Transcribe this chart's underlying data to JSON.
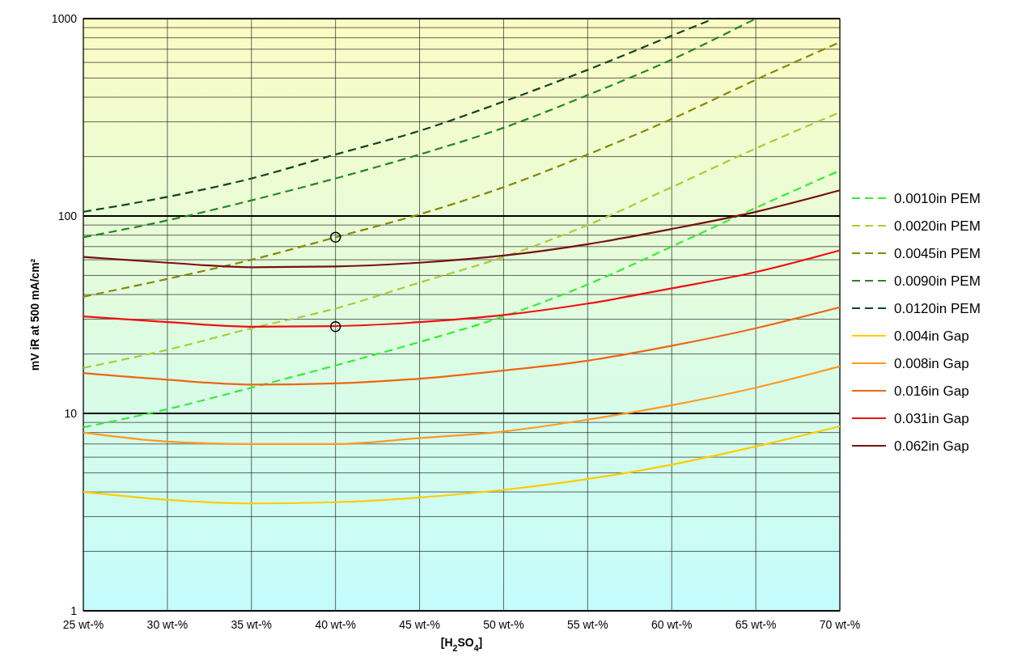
{
  "chart_data": {
    "type": "line",
    "xlabel": "[H$_{2}$SO$_{4}$]",
    "ylabel": "mV iR at 500 mA/cm²",
    "log": "y",
    "grid": true,
    "legend": "right",
    "xlim": [
      25,
      70
    ],
    "ylim": [
      1,
      1000
    ],
    "xticks": [
      {
        "value": 25,
        "label": "25 wt-%"
      },
      {
        "value": 30,
        "label": "30 wt-%"
      },
      {
        "value": 35,
        "label": "35 wt-%"
      },
      {
        "value": 40,
        "label": "40 wt-%"
      },
      {
        "value": 45,
        "label": "45 wt-%"
      },
      {
        "value": 50,
        "label": "50 wt-%"
      },
      {
        "value": 55,
        "label": "55 wt-%"
      },
      {
        "value": 60,
        "label": "60 wt-%"
      },
      {
        "value": 65,
        "label": "65 wt-%"
      },
      {
        "value": 70,
        "label": "70 wt-%"
      }
    ],
    "yticks": [
      1,
      {
        "value": 2,
        "label": null
      },
      {
        "value": 3,
        "label": null
      },
      {
        "value": 4,
        "label": null
      },
      {
        "value": 5,
        "label": null
      },
      {
        "value": 6,
        "label": null
      },
      {
        "value": 7,
        "label": null
      },
      {
        "value": 8,
        "label": null
      },
      {
        "value": 9,
        "label": null
      },
      10,
      {
        "value": 20,
        "label": null
      },
      {
        "value": 30,
        "label": null
      },
      {
        "value": 40,
        "label": null
      },
      {
        "value": 50,
        "label": null
      },
      {
        "value": 60,
        "label": null
      },
      {
        "value": 70,
        "label": null
      },
      {
        "value": 80,
        "label": null
      },
      {
        "value": 90,
        "label": null
      },
      100,
      {
        "value": 200,
        "label": null
      },
      {
        "value": 300,
        "label": null
      },
      {
        "value": 400,
        "label": null
      },
      {
        "value": 500,
        "label": null
      },
      {
        "value": 600,
        "label": null
      },
      {
        "value": 700,
        "label": null
      },
      {
        "value": 800,
        "label": null
      },
      {
        "value": 900,
        "label": null
      },
      1000
    ],
    "x": [
      25,
      30,
      35,
      40,
      45,
      50,
      55,
      60,
      65,
      70
    ],
    "series": [
      {
        "name": "0.0010in PEM",
        "color": "#33ee33",
        "line_style": "dashed",
        "values": [
          8.5,
          10.5,
          13.5,
          17.5,
          23,
          31,
          45,
          70,
          110,
          170
        ]
      },
      {
        "name": "0.0020in PEM",
        "color": "#aacc33",
        "line_style": "dashed",
        "values": [
          17,
          21,
          27,
          34,
          46,
          62,
          90,
          140,
          220,
          335
        ]
      },
      {
        "name": "0.0045in PEM",
        "color": "#888800",
        "line_style": "dashed",
        "values": [
          39,
          48,
          60,
          78,
          102,
          140,
          205,
          310,
          490,
          760
        ]
      },
      {
        "name": "0.0090in PEM",
        "color": "#228822",
        "line_style": "dashed",
        "x": [
          25,
          30,
          35,
          40,
          45,
          50,
          55,
          60,
          65
        ],
        "values": [
          78,
          95,
          120,
          155,
          205,
          280,
          410,
          620,
          1000
        ]
      },
      {
        "name": "0.0120in PEM",
        "color": "#114422",
        "line_style": "dashed",
        "x": [
          25,
          30,
          35,
          40,
          45,
          50,
          55,
          60,
          62.5
        ],
        "values": [
          105,
          125,
          155,
          205,
          270,
          380,
          550,
          820,
          1000
        ]
      },
      {
        "name": "0.004in Gap",
        "color": "#ffcc00",
        "line_style": "solid",
        "values": [
          4,
          3.65,
          3.5,
          3.55,
          3.75,
          4.1,
          4.65,
          5.5,
          6.8,
          8.6
        ]
      },
      {
        "name": "0.008in Gap",
        "color": "#ff9922",
        "line_style": "solid",
        "values": [
          8,
          7.2,
          7,
          7,
          7.5,
          8.1,
          9.3,
          11,
          13.5,
          17.3
        ]
      },
      {
        "name": "0.016in Gap",
        "color": "#ee6611",
        "line_style": "solid",
        "values": [
          16,
          14.8,
          14,
          14.2,
          15,
          16.5,
          18.5,
          22,
          27,
          34.5
        ]
      },
      {
        "name": "0.031in Gap",
        "color": "#ee1111",
        "line_style": "solid",
        "values": [
          31,
          29,
          27.5,
          27.7,
          29,
          31.5,
          36,
          43,
          52,
          67
        ]
      },
      {
        "name": "0.062in Gap",
        "color": "#771111",
        "line_style": "solid",
        "values": [
          62,
          58,
          55,
          55.5,
          58,
          63,
          72,
          86,
          105,
          135
        ]
      },
      {
        "type": "scatter",
        "color": "#000000",
        "marker": "circle",
        "x": [
          40,
          40
        ],
        "values": [
          78,
          27.5
        ]
      }
    ]
  }
}
